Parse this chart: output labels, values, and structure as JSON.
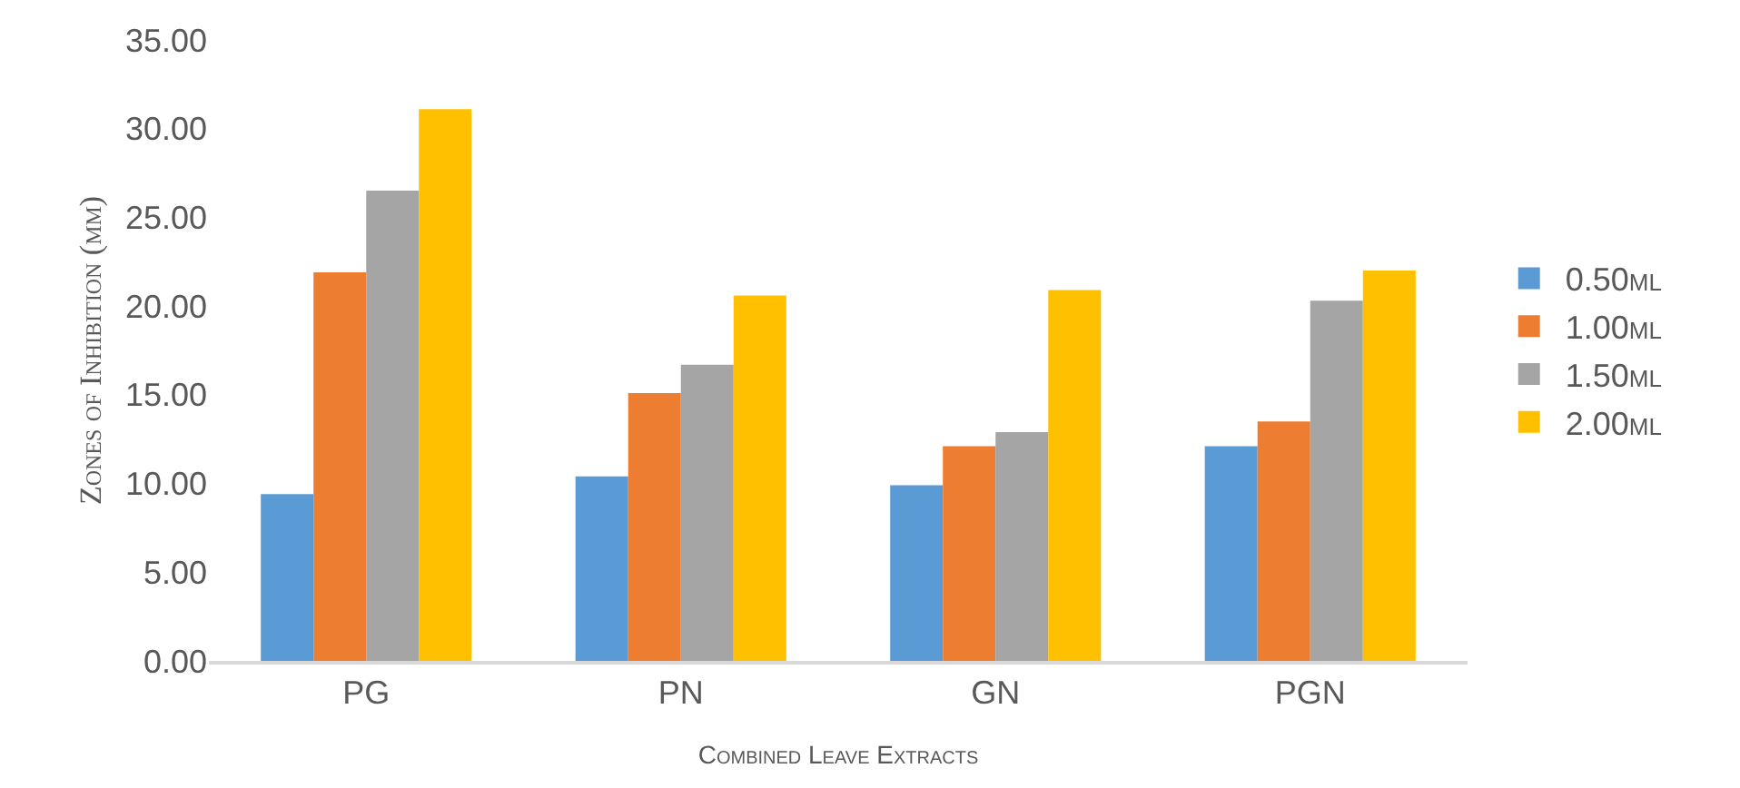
{
  "chart_data": {
    "type": "bar",
    "xlabel": "Combined Leave Extracts",
    "ylabel": "Zones of Inhibition (mm)",
    "categories": [
      "PG",
      "PN",
      "GN",
      "PGN"
    ],
    "series": [
      {
        "name": "0.50ml",
        "color": "#5b9bd5",
        "values": [
          9.4,
          10.4,
          9.9,
          12.1
        ]
      },
      {
        "name": "1.00ml",
        "color": "#ed7d31",
        "values": [
          21.9,
          15.1,
          12.1,
          13.5
        ]
      },
      {
        "name": "1.50ml",
        "color": "#a5a5a5",
        "values": [
          26.5,
          16.7,
          12.9,
          20.3
        ]
      },
      {
        "name": "2.00ml",
        "color": "#ffc000",
        "values": [
          31.1,
          20.6,
          20.9,
          22.0
        ]
      }
    ],
    "ylim": [
      0,
      35
    ],
    "yticks": [
      {
        "value": 0,
        "label": "0.00"
      },
      {
        "value": 5,
        "label": "5.00"
      },
      {
        "value": 10,
        "label": "10.00"
      },
      {
        "value": 15,
        "label": "15.00"
      },
      {
        "value": 20,
        "label": "20.00"
      },
      {
        "value": 25,
        "label": "25.00"
      },
      {
        "value": 30,
        "label": "30.00"
      },
      {
        "value": 35,
        "label": "35.00"
      }
    ],
    "grid": false,
    "legend": "right"
  }
}
